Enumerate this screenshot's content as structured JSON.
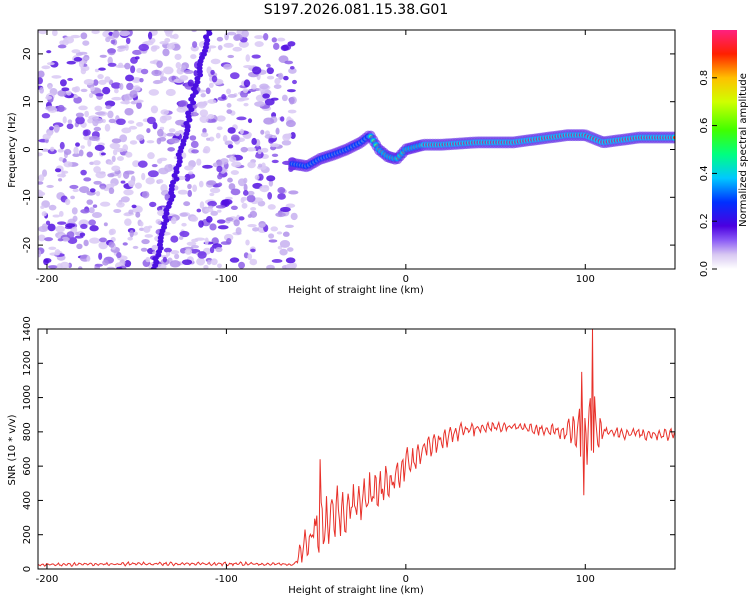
{
  "title": "S197.2026.081.15.38.G01",
  "chart_data": [
    {
      "type": "heatmap",
      "xlabel": "Height of straight line (km)",
      "ylabel": "Frequency (Hz)",
      "xlim": [
        -205,
        150
      ],
      "ylim": [
        -25,
        25
      ],
      "xticks": [
        -200,
        -100,
        0,
        100
      ],
      "yticks": [
        -20,
        -10,
        0,
        10,
        20
      ],
      "colorbar": {
        "label": "Normalized spectral amplitude",
        "range": [
          0,
          1
        ],
        "ticks": [
          0.0,
          0.2,
          0.4,
          0.6,
          0.8
        ]
      },
      "ridge": {
        "x": [
          -63,
          -55,
          -48,
          -40,
          -33,
          -25,
          -20,
          -15,
          -10,
          -5,
          0,
          10,
          20,
          40,
          60,
          80,
          90,
          100,
          110,
          130,
          150
        ],
        "freq": [
          -3,
          -3.5,
          -2,
          -1,
          0,
          1.5,
          3,
          0,
          -1.5,
          -2,
          0,
          1,
          1,
          1.5,
          1.5,
          2.5,
          3,
          3,
          1.5,
          2.5,
          2.5
        ]
      },
      "noise_region": [
        -205,
        -62
      ]
    },
    {
      "type": "line",
      "xlabel": "Height of straight line (km)",
      "ylabel": "SNR (10 * v/v)",
      "xlim": [
        -205,
        150
      ],
      "ylim": [
        0,
        1400
      ],
      "xticks": [
        -200,
        -100,
        0,
        100
      ],
      "yticks": [
        0,
        200,
        400,
        600,
        800,
        1000,
        1200,
        1400
      ],
      "color": "#e8312a",
      "series": [
        {
          "name": "SNR",
          "envelope": {
            "x": [
              -205,
              -150,
              -100,
              -62,
              -55,
              -48,
              -40,
              -30,
              -20,
              -10,
              0,
              10,
              20,
              30,
              40,
              50,
              60,
              70,
              80,
              90,
              95,
              100,
              105,
              110,
              120,
              130,
              140,
              150
            ],
            "base": [
              25,
              30,
              30,
              28,
              150,
              250,
              320,
              380,
              430,
              500,
              600,
              700,
              750,
              800,
              820,
              830,
              830,
              820,
              810,
              800,
              780,
              760,
              820,
              800,
              790,
              790,
              780,
              790
            ],
            "amp": [
              10,
              12,
              12,
              10,
              150,
              180,
              160,
              150,
              140,
              130,
              110,
              70,
              60,
              50,
              40,
              30,
              30,
              40,
              60,
              90,
              150,
              300,
              350,
              60,
              40,
              40,
              40,
              40
            ]
          },
          "spikes": [
            {
              "x": -48,
              "y": 640
            },
            {
              "x": 98,
              "y": 1150
            },
            {
              "x": 104,
              "y": 1400
            },
            {
              "x": 99,
              "y": 430
            }
          ]
        }
      ]
    }
  ]
}
